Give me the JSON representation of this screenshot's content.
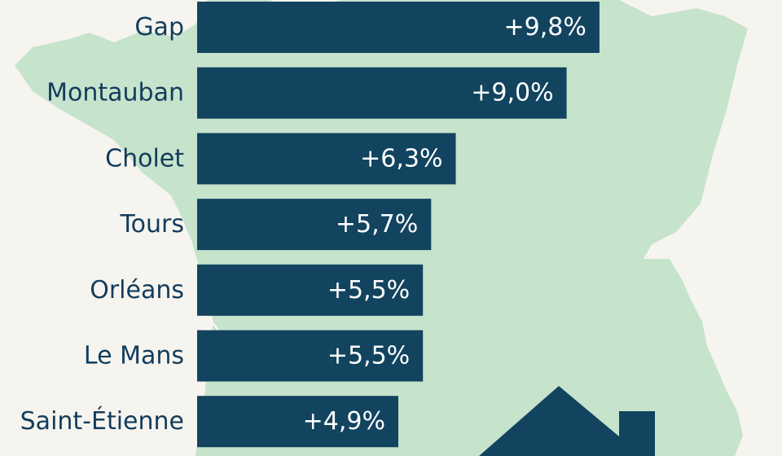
{
  "chart_data": {
    "type": "bar",
    "orientation": "horizontal",
    "categories": [
      "Gap",
      "Montauban",
      "Cholet",
      "Tours",
      "Orléans",
      "Le Mans",
      "Saint-Étienne"
    ],
    "values": [
      9.8,
      9.0,
      6.3,
      5.7,
      5.5,
      5.5,
      4.9
    ],
    "value_labels": [
      "+9,8%",
      "+9,0%",
      "+6,3%",
      "+5,7%",
      "+5,5%",
      "+5,5%",
      "+4,9%"
    ],
    "title": "",
    "xlabel": "",
    "ylabel": "",
    "grid": false,
    "colors": {
      "bar": "#12445f",
      "category_text": "#123c5c",
      "value_text": "#ffffff",
      "map": "#c6e3cc",
      "background": "#f6f4ef",
      "house_icon": "#12445f"
    }
  },
  "decor": {
    "background_icon": "france-map-icon",
    "corner_icon": "house-icon"
  }
}
